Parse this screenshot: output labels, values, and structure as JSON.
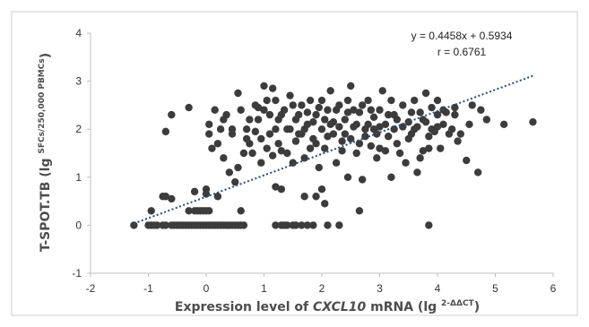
{
  "chart_data": {
    "type": "scatter",
    "title": "",
    "annotation_equation": "y = 0.4458x + 0.5934",
    "annotation_r": "r = 0.6761",
    "ylabel_main": "T-SPOT.TB (lg ",
    "ylabel_sup": "SFCs/250,000 PBMCs",
    "ylabel_end": ")",
    "xlabel_main": "Expression level of ",
    "xlabel_gene": "CXCL10",
    "xlabel_mid": " mRNA (lg ",
    "xlabel_sup": "2-ΔΔCT",
    "xlabel_end": ")",
    "xlim": [
      -2,
      6
    ],
    "ylim": [
      -1,
      4
    ],
    "xticks": [
      "-2",
      "-1",
      "0",
      "1",
      "2",
      "3",
      "4",
      "5",
      "6"
    ],
    "yticks": [
      "-1",
      "0",
      "1",
      "2",
      "3",
      "4"
    ],
    "trendline": {
      "slope": 0.4458,
      "intercept": 0.5934,
      "x_start": -1.25,
      "x_end": 5.65
    },
    "grid": false,
    "legend": "none",
    "marker_color": "#3c3c3c",
    "trend_color": "#2e4a6b",
    "points": [
      [
        -1.25,
        0
      ],
      [
        -1.0,
        0
      ],
      [
        -0.95,
        0
      ],
      [
        -0.9,
        0
      ],
      [
        -0.85,
        0
      ],
      [
        -0.75,
        0
      ],
      [
        -0.7,
        0
      ],
      [
        -0.6,
        0
      ],
      [
        -0.55,
        0
      ],
      [
        -0.5,
        0
      ],
      [
        -0.45,
        0
      ],
      [
        -0.4,
        0
      ],
      [
        -0.35,
        0
      ],
      [
        -0.3,
        0
      ],
      [
        -0.25,
        0
      ],
      [
        -0.2,
        0
      ],
      [
        -0.15,
        0
      ],
      [
        -0.1,
        0
      ],
      [
        -0.05,
        0
      ],
      [
        0.0,
        0
      ],
      [
        0.05,
        0
      ],
      [
        0.1,
        0
      ],
      [
        0.15,
        0
      ],
      [
        0.2,
        0
      ],
      [
        0.25,
        0
      ],
      [
        0.3,
        0
      ],
      [
        0.35,
        0
      ],
      [
        0.4,
        0
      ],
      [
        0.45,
        0
      ],
      [
        0.5,
        0
      ],
      [
        0.55,
        0
      ],
      [
        0.6,
        0
      ],
      [
        0.65,
        0
      ],
      [
        1.2,
        0
      ],
      [
        1.3,
        0
      ],
      [
        1.35,
        0
      ],
      [
        1.4,
        0
      ],
      [
        1.5,
        0
      ],
      [
        1.55,
        0
      ],
      [
        1.65,
        0
      ],
      [
        1.75,
        0
      ],
      [
        1.85,
        0
      ],
      [
        2.1,
        0
      ],
      [
        2.3,
        0
      ],
      [
        3.85,
        0
      ],
      [
        -0.95,
        0.3
      ],
      [
        -0.3,
        0.3
      ],
      [
        -0.2,
        0.3
      ],
      [
        -0.15,
        0.3
      ],
      [
        -0.1,
        0.3
      ],
      [
        -0.05,
        0.3
      ],
      [
        0.0,
        0.3
      ],
      [
        0.05,
        0.3
      ],
      [
        0.6,
        0.3
      ],
      [
        2.65,
        0.3
      ],
      [
        -0.6,
        0.55
      ],
      [
        -0.75,
        0.6
      ],
      [
        -0.7,
        0.6
      ],
      [
        -0.2,
        0.7
      ],
      [
        0.0,
        0.75
      ],
      [
        0.0,
        0.65
      ],
      [
        0.2,
        0.6
      ],
      [
        1.2,
        0.8
      ],
      [
        1.3,
        0.75
      ],
      [
        1.7,
        0.6
      ],
      [
        1.9,
        0.6
      ],
      [
        2.0,
        0.75
      ],
      [
        2.05,
        0.45
      ],
      [
        -0.7,
        1.95
      ],
      [
        -0.6,
        2.3
      ],
      [
        -0.3,
        2.45
      ],
      [
        0.05,
        2.1
      ],
      [
        0.15,
        2.4
      ],
      [
        0.3,
        2.2
      ],
      [
        0.45,
        1.9
      ],
      [
        0.55,
        2.75
      ],
      [
        0.6,
        2.4
      ],
      [
        0.7,
        2.0
      ],
      [
        0.75,
        1.7
      ],
      [
        0.8,
        1.5
      ],
      [
        0.85,
        2.5
      ],
      [
        0.9,
        2.2
      ],
      [
        0.95,
        1.8
      ],
      [
        1.0,
        2.9
      ],
      [
        1.05,
        2.6
      ],
      [
        1.1,
        2.3
      ],
      [
        1.15,
        2.85
      ],
      [
        1.2,
        2.0
      ],
      [
        1.25,
        1.7
      ],
      [
        1.3,
        1.55
      ],
      [
        1.35,
        2.4
      ],
      [
        1.4,
        1.5
      ],
      [
        1.45,
        2.7
      ],
      [
        1.5,
        1.3
      ],
      [
        1.55,
        2.2
      ],
      [
        1.6,
        1.9
      ],
      [
        1.65,
        2.5
      ],
      [
        1.7,
        1.4
      ],
      [
        1.75,
        2.1
      ],
      [
        1.8,
        2.6
      ],
      [
        1.85,
        1.8
      ],
      [
        1.9,
        2.3
      ],
      [
        1.95,
        1.2
      ],
      [
        2.0,
        2.0
      ],
      [
        2.05,
        1.6
      ],
      [
        2.1,
        2.4
      ],
      [
        2.15,
        2.8
      ],
      [
        2.2,
        1.9
      ],
      [
        2.25,
        1.3
      ],
      [
        2.3,
        2.5
      ],
      [
        2.35,
        1.75
      ],
      [
        2.4,
        2.2
      ],
      [
        2.45,
        1.0
      ],
      [
        2.5,
        2.9
      ],
      [
        2.55,
        2.05
      ],
      [
        2.6,
        1.5
      ],
      [
        2.65,
        2.35
      ],
      [
        2.7,
        0.95
      ],
      [
        2.75,
        1.85
      ],
      [
        2.8,
        2.6
      ],
      [
        2.85,
        1.65
      ],
      [
        2.9,
        2.25
      ],
      [
        2.95,
        1.4
      ],
      [
        3.0,
        2.05
      ],
      [
        3.05,
        2.8
      ],
      [
        3.1,
        1.55
      ],
      [
        3.15,
        2.3
      ],
      [
        3.2,
        1.0
      ],
      [
        3.25,
        2.0
      ],
      [
        3.3,
        1.7
      ],
      [
        3.4,
        2.5
      ],
      [
        3.45,
        1.3
      ],
      [
        3.5,
        2.15
      ],
      [
        3.55,
        1.9
      ],
      [
        3.6,
        2.6
      ],
      [
        3.65,
        1.1
      ],
      [
        3.7,
        2.35
      ],
      [
        3.75,
        1.55
      ],
      [
        3.8,
        2.75
      ],
      [
        3.85,
        1.85
      ],
      [
        3.9,
        2.45
      ],
      [
        3.95,
        1.95
      ],
      [
        4.0,
        2.3
      ],
      [
        4.05,
        1.6
      ],
      [
        4.1,
        2.1
      ],
      [
        4.2,
        1.9
      ],
      [
        4.3,
        2.45
      ],
      [
        4.35,
        1.75
      ],
      [
        4.5,
        1.35
      ],
      [
        4.6,
        2.5
      ],
      [
        4.7,
        1.1
      ],
      [
        4.75,
        2.4
      ],
      [
        4.85,
        2.2
      ],
      [
        5.15,
        2.1
      ],
      [
        5.65,
        2.15
      ],
      [
        0.2,
        1.7
      ],
      [
        0.3,
        1.4
      ],
      [
        0.4,
        1.1
      ],
      [
        0.5,
        0.9
      ],
      [
        0.55,
        1.2
      ],
      [
        0.65,
        1.5
      ],
      [
        0.7,
        1.8
      ],
      [
        0.85,
        1.95
      ],
      [
        0.95,
        1.3
      ],
      [
        1.0,
        2.4
      ],
      [
        1.1,
        1.9
      ],
      [
        1.2,
        2.6
      ],
      [
        1.25,
        2.2
      ],
      [
        1.4,
        2.0
      ],
      [
        1.5,
        2.5
      ],
      [
        1.6,
        2.3
      ],
      [
        1.7,
        2.0
      ],
      [
        1.8,
        1.6
      ],
      [
        1.95,
        2.45
      ],
      [
        2.05,
        2.2
      ],
      [
        2.1,
        1.85
      ],
      [
        2.2,
        2.15
      ],
      [
        2.3,
        2.05
      ],
      [
        2.35,
        1.55
      ],
      [
        2.45,
        2.35
      ],
      [
        2.5,
        1.8
      ],
      [
        2.6,
        2.1
      ],
      [
        2.7,
        2.5
      ],
      [
        2.75,
        2.0
      ],
      [
        2.85,
        2.4
      ],
      [
        2.95,
        1.9
      ],
      [
        3.0,
        1.6
      ],
      [
        3.1,
        2.1
      ],
      [
        3.2,
        2.6
      ],
      [
        3.3,
        2.2
      ],
      [
        3.35,
        1.5
      ],
      [
        3.5,
        1.8
      ],
      [
        3.6,
        2.0
      ],
      [
        3.7,
        1.4
      ],
      [
        3.8,
        2.15
      ],
      [
        3.9,
        2.0
      ],
      [
        4.0,
        2.6
      ],
      [
        4.15,
        2.35
      ],
      [
        4.25,
        2.0
      ],
      [
        4.4,
        1.9
      ],
      [
        4.55,
        2.1
      ],
      [
        0.05,
        1.9
      ],
      [
        0.1,
        1.6
      ],
      [
        0.25,
        2.0
      ],
      [
        0.35,
        2.3
      ],
      [
        0.45,
        2.0
      ],
      [
        0.75,
        2.2
      ],
      [
        0.9,
        2.45
      ],
      [
        1.05,
        1.6
      ],
      [
        1.15,
        1.45
      ],
      [
        1.3,
        2.3
      ],
      [
        1.45,
        2.0
      ],
      [
        1.55,
        1.75
      ],
      [
        1.65,
        1.9
      ],
      [
        1.75,
        2.35
      ],
      [
        1.85,
        2.15
      ],
      [
        1.9,
        1.7
      ],
      [
        2.0,
        2.6
      ],
      [
        2.15,
        2.1
      ],
      [
        2.25,
        2.4
      ],
      [
        2.4,
        1.9
      ],
      [
        2.45,
        2.6
      ],
      [
        2.55,
        2.4
      ],
      [
        2.65,
        1.7
      ],
      [
        2.8,
        2.1
      ],
      [
        2.9,
        2.0
      ],
      [
        3.0,
        2.4
      ],
      [
        3.15,
        1.85
      ],
      [
        3.25,
        2.3
      ],
      [
        3.4,
        2.05
      ],
      [
        3.55,
        2.35
      ],
      [
        3.65,
        2.05
      ],
      [
        3.75,
        2.2
      ],
      [
        3.85,
        1.6
      ],
      [
        4.0,
        2.05
      ],
      [
        4.1,
        2.4
      ],
      [
        4.3,
        2.3
      ]
    ]
  }
}
